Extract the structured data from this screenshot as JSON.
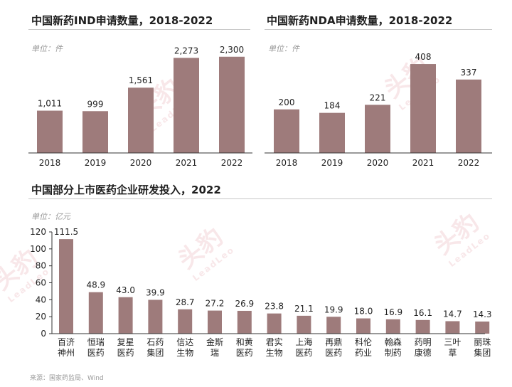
{
  "watermark": {
    "name": "头豹",
    "sub": "LeadLeo"
  },
  "source": "来源：国家药监局、Wind",
  "colors": {
    "bar": "#9e7b7b",
    "axis": "#333333"
  },
  "chart_data": [
    {
      "type": "bar",
      "title": "中国新药IND申请数量，2018-2022",
      "unit": "单位：件",
      "categories": [
        "2018",
        "2019",
        "2020",
        "2021",
        "2022"
      ],
      "values": [
        1011,
        999,
        1561,
        2273,
        2300
      ],
      "value_labels": [
        "1,011",
        "999",
        "1,561",
        "2,273",
        "2,300"
      ],
      "ylim": [
        0,
        2500
      ],
      "grid": false,
      "y_axis_visible": false
    },
    {
      "type": "bar",
      "title": "中国新药NDA申请数量，2018-2022",
      "unit": "单位：件",
      "categories": [
        "2018",
        "2019",
        "2020",
        "2021",
        "2022"
      ],
      "values": [
        200,
        184,
        221,
        408,
        337
      ],
      "value_labels": [
        "200",
        "184",
        "221",
        "408",
        "337"
      ],
      "ylim": [
        0,
        480
      ],
      "grid": false,
      "y_axis_visible": false
    },
    {
      "type": "bar",
      "title": "中国部分上市医药企业研发投入，2022",
      "unit": "单位：亿元",
      "categories": [
        [
          "百济",
          "神州"
        ],
        [
          "恒瑞",
          "医药"
        ],
        [
          "复星",
          "医药"
        ],
        [
          "石药",
          "集团"
        ],
        [
          "信达",
          "生物"
        ],
        [
          "金斯",
          "瑞"
        ],
        [
          "和黄",
          "医药"
        ],
        [
          "君实",
          "生物"
        ],
        [
          "上海",
          "医药"
        ],
        [
          "再鼎",
          "医药"
        ],
        [
          "科伦",
          "药业"
        ],
        [
          "翰森",
          "制药"
        ],
        [
          "药明",
          "康德"
        ],
        [
          "三叶",
          "草"
        ],
        [
          "丽珠",
          "集团"
        ]
      ],
      "values": [
        111.5,
        48.9,
        43.0,
        39.9,
        28.7,
        27.2,
        26.9,
        23.8,
        21.1,
        19.9,
        18.0,
        16.9,
        16.1,
        14.7,
        14.3
      ],
      "value_labels": [
        "111.5",
        "48.9",
        "43.0",
        "39.9",
        "28.7",
        "27.2",
        "26.9",
        "23.8",
        "21.1",
        "19.9",
        "18.0",
        "16.9",
        "16.1",
        "14.7",
        "14.3"
      ],
      "yticks": [
        "0",
        "20",
        "40",
        "60",
        "80",
        "100",
        "120"
      ],
      "ylim": [
        0,
        120
      ],
      "grid": false,
      "y_axis_visible": true
    }
  ]
}
